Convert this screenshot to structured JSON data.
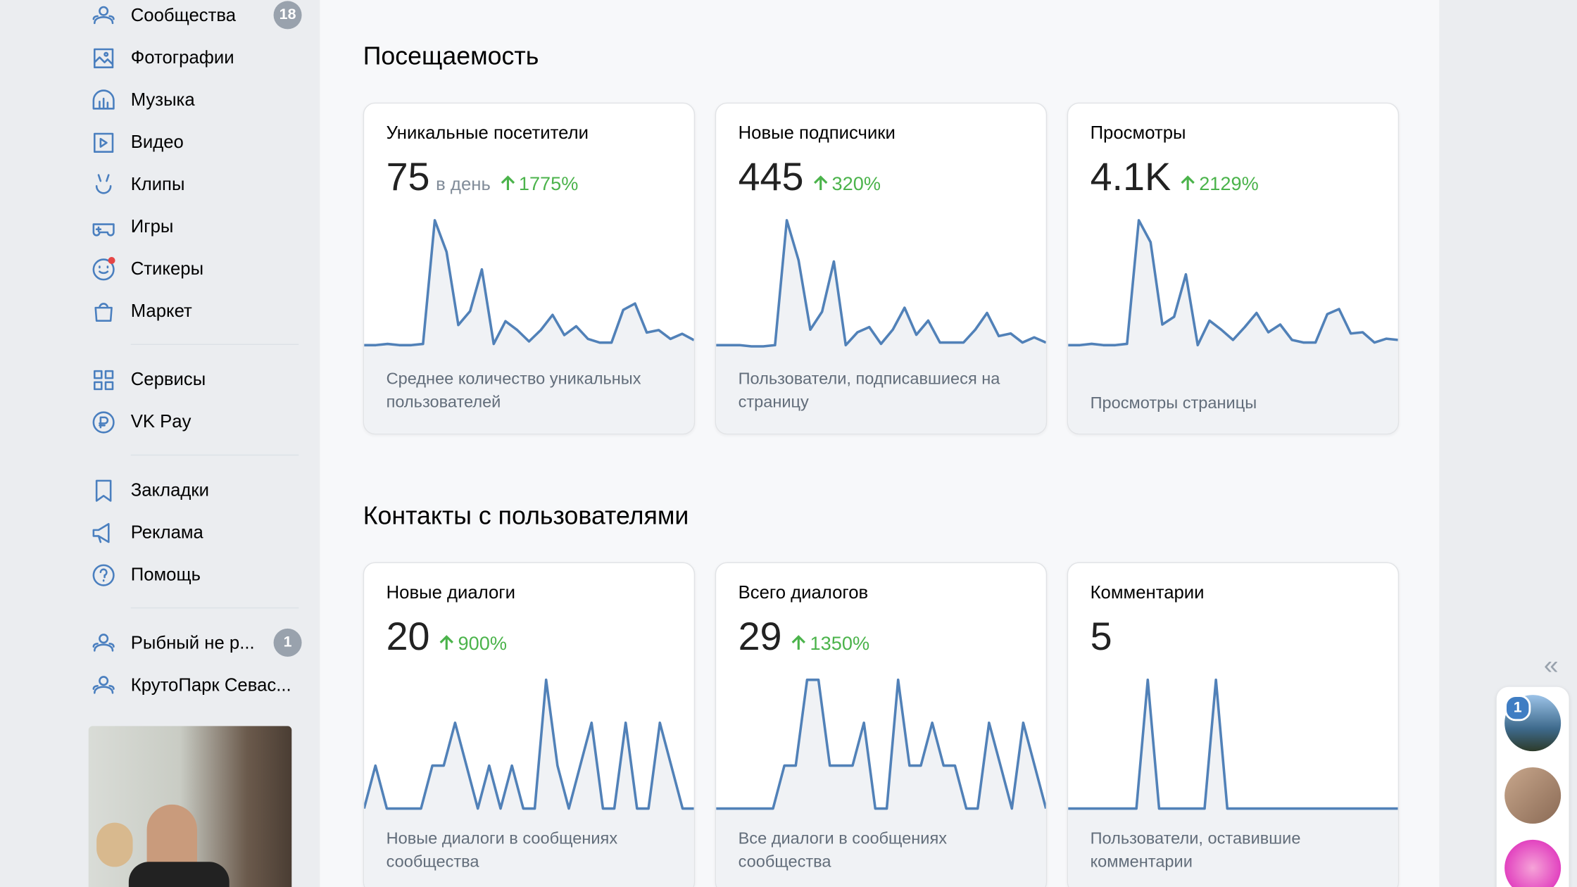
{
  "sidebar": {
    "items": [
      {
        "label": "Сообщества",
        "badge": "18"
      },
      {
        "label": "Фотографии"
      },
      {
        "label": "Музыка"
      },
      {
        "label": "Видео"
      },
      {
        "label": "Клипы"
      },
      {
        "label": "Игры"
      },
      {
        "label": "Стикеры"
      },
      {
        "label": "Маркет"
      },
      {
        "label": "Сервисы"
      },
      {
        "label": "VK Pay"
      },
      {
        "label": "Закладки"
      },
      {
        "label": "Реклама"
      },
      {
        "label": "Помощь"
      },
      {
        "label": "Рыбный не р...",
        "badge": "1"
      },
      {
        "label": "КрутоПарк Севас..."
      }
    ]
  },
  "sections": [
    {
      "title": "Посещаемость",
      "cards": [
        {
          "title": "Уникальные посетители",
          "value": "75",
          "unit": "в день",
          "change": "1775%",
          "description": "Среднее количество уникальных пользователей",
          "spark": [
            3,
            3,
            4,
            3,
            3,
            4,
            102,
            77,
            19,
            30,
            63,
            4,
            22,
            15,
            6,
            15,
            27,
            11,
            18,
            8,
            5,
            5,
            31,
            36,
            13,
            15,
            8,
            12,
            7
          ]
        },
        {
          "title": "Новые подписчики",
          "value": "445",
          "change": "320%",
          "description": "Пользователи, подписавшиеся на страницу",
          "spark": [
            3,
            3,
            3,
            2,
            2,
            3,
            100,
            69,
            15,
            29,
            68,
            3,
            13,
            17,
            4,
            15,
            32,
            11,
            22,
            5,
            5,
            5,
            15,
            28,
            10,
            12,
            5,
            9,
            5
          ]
        },
        {
          "title": "Просмотры",
          "value": "4.1K",
          "change": "2129%",
          "description": "Просмотры страницы",
          "spark": [
            3,
            3,
            4,
            3,
            3,
            4,
            100,
            83,
            19,
            25,
            58,
            3,
            22,
            15,
            7,
            17,
            28,
            13,
            19,
            7,
            5,
            5,
            27,
            31,
            12,
            13,
            5,
            8,
            7
          ]
        }
      ]
    },
    {
      "title": "Контакты с пользователями",
      "cards": [
        {
          "title": "Новые диалоги",
          "value": "20",
          "change": "900%",
          "description": "Новые диалоги в сообщениях сообщества",
          "spark": [
            0,
            1,
            0,
            0,
            0,
            0,
            1,
            1,
            2,
            1,
            0,
            1,
            0,
            1,
            0,
            0,
            3,
            1,
            0,
            1,
            2,
            0,
            0,
            2,
            0,
            0,
            2,
            1,
            0,
            0
          ]
        },
        {
          "title": "Всего диалогов",
          "value": "29",
          "change": "1350%",
          "description": "Все диалоги в сообщениях сообщества",
          "spark": [
            0,
            0,
            0,
            0,
            0,
            0,
            1,
            1,
            3,
            3,
            1,
            1,
            1,
            2,
            0,
            0,
            3,
            1,
            1,
            2,
            1,
            1,
            0,
            0,
            2,
            1,
            0,
            2,
            1,
            0
          ]
        },
        {
          "title": "Комментарии",
          "value": "5",
          "description": "Пользователи, оставившие комментарии",
          "spark": [
            0,
            0,
            0,
            0,
            0,
            0,
            0,
            3,
            0,
            0,
            0,
            0,
            0,
            3,
            0,
            0,
            0,
            0,
            0,
            0,
            0,
            0,
            0,
            0,
            0,
            0,
            0,
            0,
            0,
            0
          ]
        }
      ]
    }
  ],
  "chat_panel": {
    "badge": "1"
  }
}
